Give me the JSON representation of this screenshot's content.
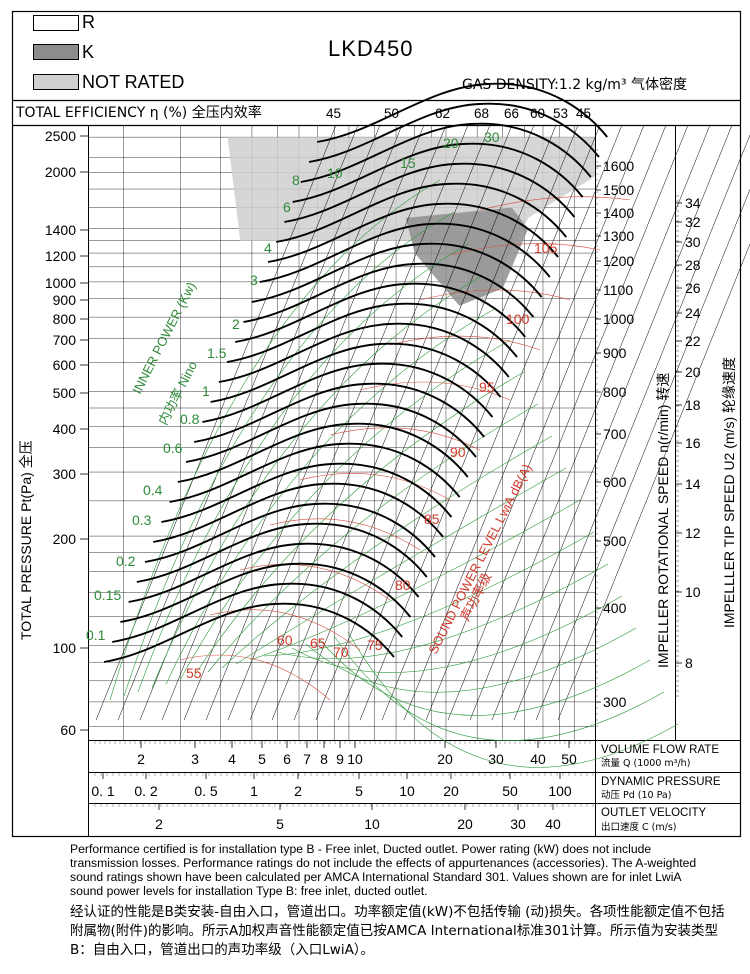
{
  "title": "LKD450",
  "legend": [
    {
      "label": "R",
      "color": "#ffffff"
    },
    {
      "label": "K",
      "color": "#8c8c8c"
    },
    {
      "label": "NOT RATED",
      "color": "#d0d0d0"
    }
  ],
  "gas_density": "GAS DENSITY:1.2 kg/m³  气体密度",
  "efficiency_row": {
    "label": "TOTAL EFFICIENCY η (%)  全压内效率",
    "values": [
      "45",
      "50",
      "62",
      "68",
      "66",
      "60",
      "53",
      "45"
    ]
  },
  "axes": {
    "y_left_label": "TOTAL PRESSURE Pt(Pa)  全压",
    "y_left_ticks": [
      "2500",
      "2000",
      "1400",
      "1200",
      "1000",
      "900",
      "800",
      "700",
      "600",
      "500",
      "400",
      "300",
      "200",
      "100",
      "60"
    ],
    "x_flow_ticks": [
      "2",
      "3",
      "4",
      "5",
      "6",
      "7",
      "8",
      "9",
      "10",
      "20",
      "30",
      "40",
      "50"
    ],
    "x_flow_label": "VOLUME FLOW RATE",
    "x_flow_label_cn": "流量 Q (1000 m³/h)",
    "x_dyn_ticks": [
      "0. 1",
      "0. 2",
      "0. 5",
      "1",
      "2",
      "5",
      "10",
      "20",
      "50",
      "100"
    ],
    "x_dyn_label": "DYNAMIC PRESSURE",
    "x_dyn_label_cn": "动压 Pd (10 Pa)",
    "x_vel_ticks": [
      "2",
      "5",
      "10",
      "20",
      "30",
      "40"
    ],
    "x_vel_label": "OUTLET VELOCITY",
    "x_vel_label_cn": "出口速度 C (m/s)",
    "speed_label": "IMPELLER ROTATIONAL SPEED n(r/min)  转速",
    "speed_ticks": [
      "1600",
      "1500",
      "1400",
      "1300",
      "1200",
      "1100",
      "1000",
      "900",
      "800",
      "700",
      "600",
      "500",
      "400",
      "300"
    ],
    "tip_label": "IMPELLLER TIP SPEED U2 (m/s)  轮缘速度",
    "tip_ticks": [
      "34",
      "32",
      "30",
      "28",
      "26",
      "24",
      "22",
      "20",
      "18",
      "16",
      "14",
      "12",
      "10",
      "8"
    ]
  },
  "power_label": "INNER POWER (Kw)",
  "power_label2": "内功率   Nino",
  "sound_label": "SOUND POWER LEVEL LwiA dB(A)",
  "sound_label2": "声功率级",
  "chart_data": {
    "type": "line",
    "title": "LKD450",
    "xlabel": "VOLUME FLOW RATE 流量 Q (1000 m³/h)",
    "ylabel": "TOTAL PRESSURE Pt(Pa) 全压",
    "x_scale": "log",
    "y_scale": "log",
    "xlim": [
      1.5,
      60
    ],
    "ylim": [
      60,
      2500
    ],
    "speed_curves_rpm": [
      300,
      350,
      400,
      450,
      500,
      550,
      600,
      650,
      700,
      750,
      800,
      850,
      900,
      950,
      1000,
      1050,
      1100,
      1150,
      1200,
      1250,
      1300,
      1350,
      1400,
      1450,
      1500,
      1550,
      1600
    ],
    "power_labels_kw": [
      "0.1",
      "0.15",
      "0.2",
      "0.3",
      "0.4",
      "0.6",
      "0.8",
      "1",
      "1.5",
      "2",
      "3",
      "4",
      "6",
      "8",
      "10",
      "15",
      "20",
      "30"
    ],
    "sound_labels_dba": [
      "55",
      "60",
      "65",
      "70",
      "75",
      "80",
      "85",
      "90",
      "95",
      "100",
      "105"
    ],
    "efficiency_labels_pct": [
      "45",
      "50",
      "62",
      "68",
      "66",
      "60",
      "53",
      "45"
    ],
    "gas_density_kg_m3": 1.2
  },
  "notes": "Performance certified is for installation type B - Free inlet, Ducted outlet. Power rating (kW) does not include transmission losses. Performance ratings do not include the effects of appurtenances (accessories). The A-weighted sound ratings shown have been calculated per AMCA International Standard 301. Values shown are for inlet LwiA sound power levels for installation Type B: free inlet, ducted outlet.",
  "notes_cn": "经认证的性能是B类安装-自由入口，管道出口。功率额定值(kW)不包括传输 (动)损失。各项性能额定值不包括附属物(附件)的影响。所示A加权声音性能额定值已按AMCA International标准301计算。所示值为安装类型B：自由入口，管道出口的声功率级（入口LwiA）。"
}
